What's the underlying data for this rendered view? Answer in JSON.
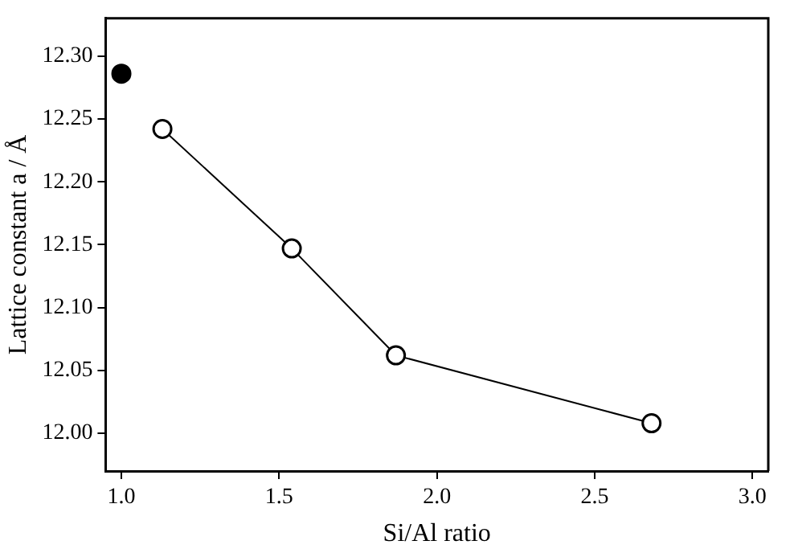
{
  "chart_data": {
    "type": "line",
    "xlabel": "Si/Al ratio",
    "ylabel": "Lattice constant a / Å",
    "xlim": [
      0.95,
      3.05
    ],
    "xticks": [
      {
        "value": 1,
        "label": "1.0"
      },
      {
        "value": 1.5,
        "label": "1.5"
      },
      {
        "value": 2,
        "label": "2.0"
      },
      {
        "value": 2.5,
        "label": "2.5"
      },
      {
        "value": 3,
        "label": "3.0"
      }
    ],
    "ylim": [
      11.97,
      12.33
    ],
    "yticks": [
      {
        "value": 12,
        "label": "12.00"
      },
      {
        "value": 12.05,
        "label": "12.05"
      },
      {
        "value": 12.1,
        "label": "12.10"
      },
      {
        "value": 12.15,
        "label": "12.15"
      },
      {
        "value": 12.2,
        "label": "12.20"
      },
      {
        "value": 12.25,
        "label": "12.25"
      },
      {
        "value": 12.3,
        "label": "12.30"
      }
    ],
    "grid": false,
    "legend": false,
    "marker": "circle",
    "line_style": "solid",
    "series": [
      {
        "type": "scatter",
        "color": "#000000",
        "x": [
          1.0
        ],
        "values": [
          12.286
        ]
      },
      {
        "type": "line",
        "color": "#000000",
        "x": [
          1.13,
          1.54,
          1.87,
          2.68
        ],
        "values": [
          12.242,
          12.147,
          12.062,
          12.008
        ]
      }
    ]
  }
}
